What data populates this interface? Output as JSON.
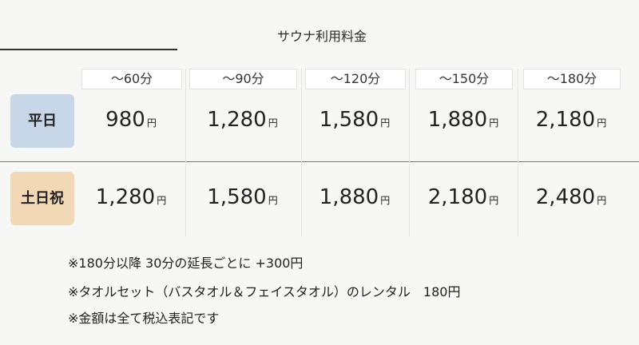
{
  "title": "サウナ利用料金",
  "columns": [
    "～60分",
    "～90分",
    "～120分",
    "～150分",
    "～180分"
  ],
  "currency": "円",
  "rows": [
    {
      "label": "平日",
      "color": "#c7d7e7",
      "prices": [
        "980",
        "1,280",
        "1,580",
        "1,880",
        "2,180"
      ]
    },
    {
      "label": "土日祝",
      "color": "#f2d8b5",
      "prices": [
        "1,280",
        "1,580",
        "1,880",
        "2,180",
        "2,480"
      ]
    }
  ],
  "notes": [
    "※180分以降 30分の延長ごとに +300円",
    "※タオルセット（バスタオル＆フェイスタオル）のレンタル　180円",
    "※金額は全て税込表記です"
  ]
}
